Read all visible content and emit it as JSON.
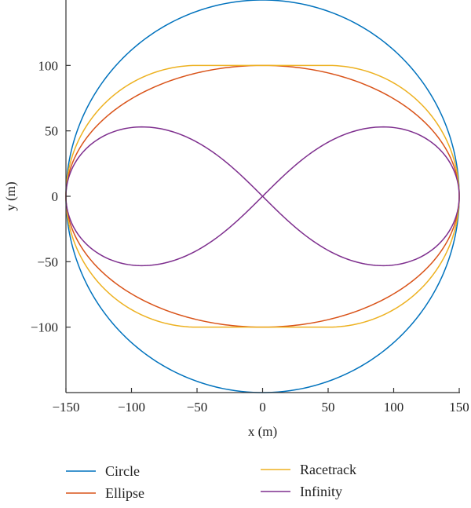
{
  "chart_data": {
    "type": "line",
    "title": "",
    "xlabel": "x (m)",
    "ylabel": "y (m)",
    "xlim": [
      -150,
      150
    ],
    "ylim": [
      -150,
      150
    ],
    "xticks": [
      -150,
      -100,
      -50,
      0,
      50,
      100,
      150
    ],
    "yticks": [
      -100,
      -50,
      0,
      50,
      100
    ],
    "xtick_labels": [
      "−150",
      "−100",
      "−50",
      "0",
      "50",
      "100",
      "150"
    ],
    "ytick_labels": [
      "−100",
      "−50",
      "0",
      "50",
      "100"
    ],
    "grid": false,
    "legend_position": "bottom",
    "series": [
      {
        "name": "Circle",
        "color": "#0072BD",
        "shape": "circle",
        "params": {
          "radius": 150
        }
      },
      {
        "name": "Ellipse",
        "color": "#D95319",
        "shape": "ellipse",
        "params": {
          "a": 150,
          "b": 100
        }
      },
      {
        "name": "Racetrack",
        "color": "#EDB120",
        "shape": "racetrack",
        "params": {
          "half_straight": 50,
          "half_width": 100,
          "x_extent": 150
        }
      },
      {
        "name": "Infinity",
        "color": "#7E2F8E",
        "shape": "lemniscate",
        "params": {
          "a": 150,
          "peak_y": 53,
          "peak_x": 91
        }
      }
    ]
  }
}
